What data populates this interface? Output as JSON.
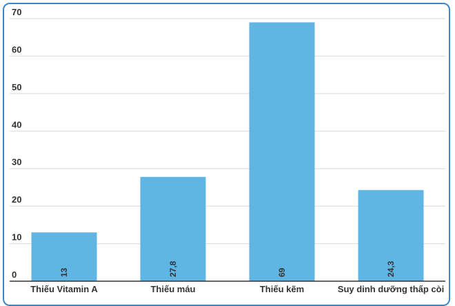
{
  "chart_data": {
    "type": "bar",
    "categories": [
      "Thiếu Vitamin A",
      "Thiếu máu",
      "Thiếu kẽm",
      "Suy dinh dưỡng thấp còi"
    ],
    "values": [
      13,
      27.8,
      69,
      24.3
    ],
    "data_labels": [
      "13",
      "27,8",
      "69",
      "24,3"
    ],
    "yticks": [
      "0",
      "10",
      "20",
      "30",
      "40",
      "50",
      "60",
      "70"
    ],
    "title": "",
    "xlabel": "",
    "ylabel": "",
    "ylim": [
      0,
      70
    ],
    "grid": true,
    "bar_color": "#5fb5e3",
    "grid_color": "#d9d9d9",
    "frame_color": "#3b86c8"
  }
}
